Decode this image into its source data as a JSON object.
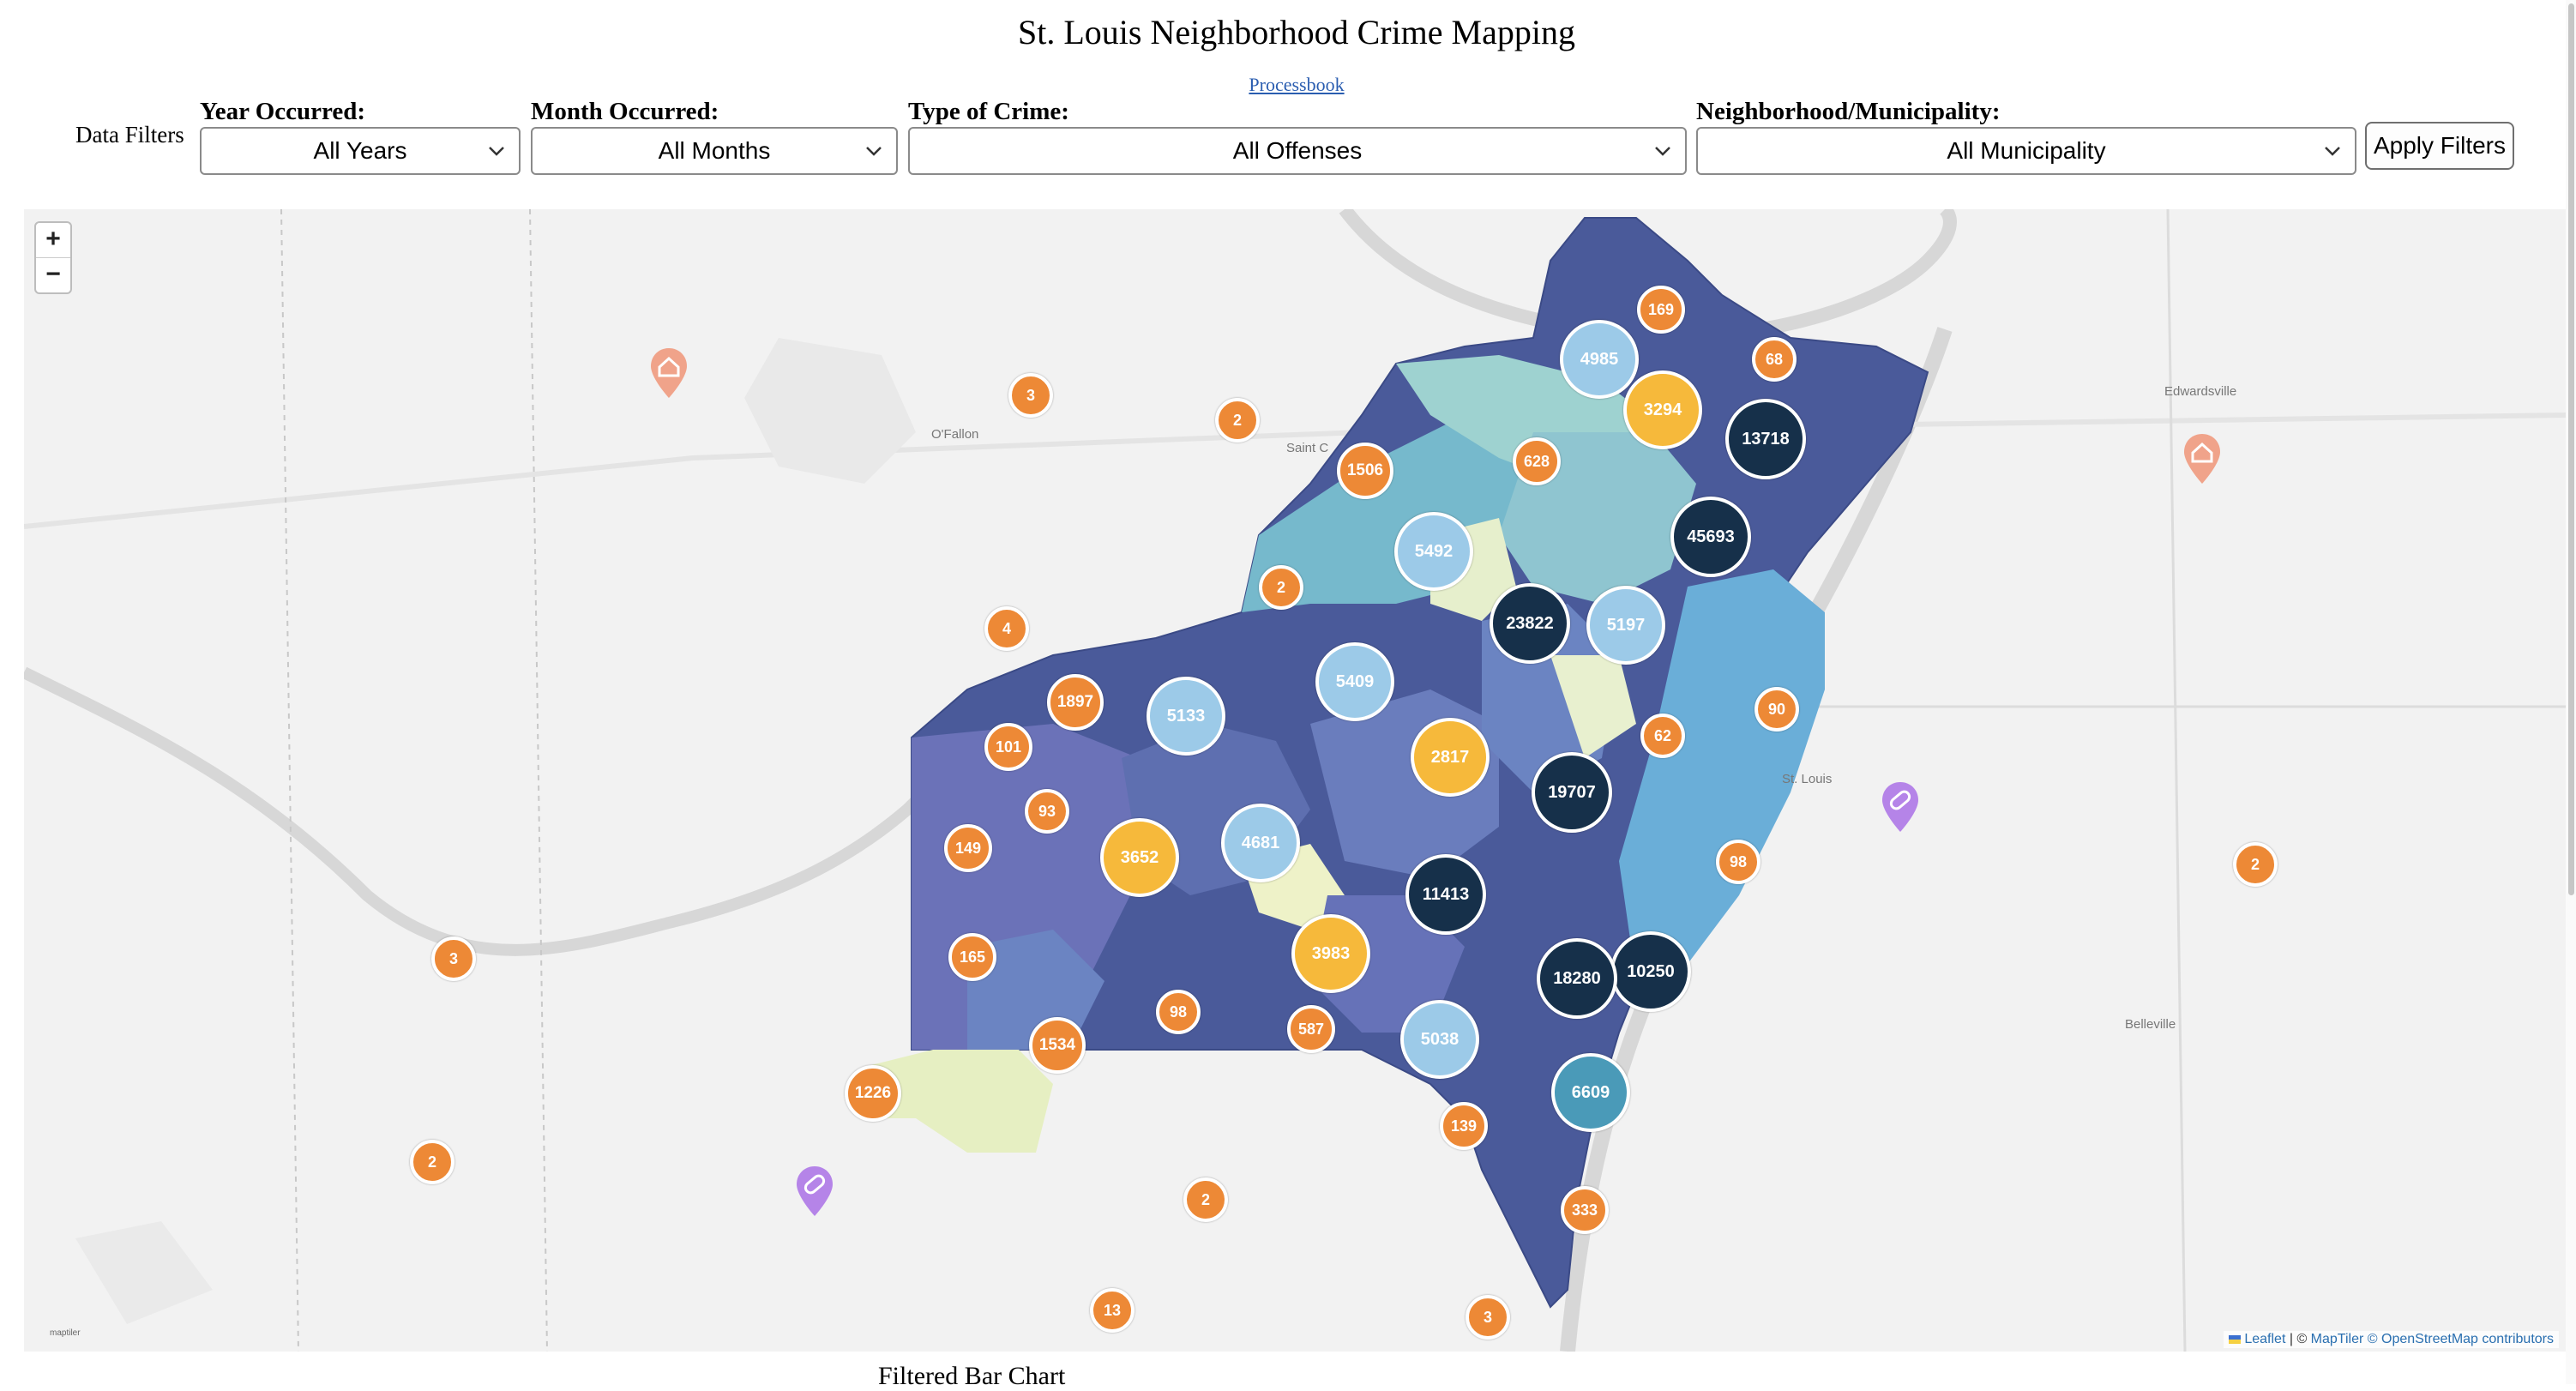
{
  "page": {
    "title": "St. Louis Neighborhood Crime Mapping",
    "link": "Processbook"
  },
  "filters": {
    "section_label": "Data Filters",
    "year": {
      "label": "Year Occurred:",
      "selected": "All Years"
    },
    "month": {
      "label": "Month Occurred:",
      "selected": "All Months"
    },
    "crime_type": {
      "label": "Type of Crime:",
      "selected": "All Offenses"
    },
    "neighborhood": {
      "label": "Neighborhood/Municipality:",
      "selected": "All Municipality"
    },
    "apply_label": "Apply Filters"
  },
  "map": {
    "zoom_in": "+",
    "zoom_out": "−",
    "towns": [
      "O'Fallon",
      "Saint C",
      "Edwardsville",
      "St. Louis",
      "Belleville"
    ],
    "attribution": {
      "leaflet": "Leaflet",
      "sep": " | © ",
      "maptiler": "MapTiler",
      "osm": "© OpenStreetMap contributors"
    },
    "logo": "maptiler",
    "colors": {
      "orange": "#ed8936",
      "yellow": "#f6b93b",
      "light_blue": "#9ccae8",
      "teal": "#4a9ab8",
      "navy": "#16304a"
    },
    "clusters": [
      {
        "count": "169",
        "tier": "orange"
      },
      {
        "count": "68",
        "tier": "orange"
      },
      {
        "count": "4985",
        "tier": "light_blue"
      },
      {
        "count": "3294",
        "tier": "yellow"
      },
      {
        "count": "13718",
        "tier": "navy"
      },
      {
        "count": "3",
        "tier": "orange"
      },
      {
        "count": "2",
        "tier": "orange"
      },
      {
        "count": "1506",
        "tier": "orange"
      },
      {
        "count": "628",
        "tier": "orange"
      },
      {
        "count": "45693",
        "tier": "navy"
      },
      {
        "count": "5492",
        "tier": "light_blue"
      },
      {
        "count": "2",
        "tier": "orange"
      },
      {
        "count": "23822",
        "tier": "navy"
      },
      {
        "count": "5197",
        "tier": "light_blue"
      },
      {
        "count": "4",
        "tier": "orange"
      },
      {
        "count": "5409",
        "tier": "light_blue"
      },
      {
        "count": "1897",
        "tier": "orange"
      },
      {
        "count": "5133",
        "tier": "light_blue"
      },
      {
        "count": "101",
        "tier": "orange"
      },
      {
        "count": "90",
        "tier": "orange"
      },
      {
        "count": "62",
        "tier": "orange"
      },
      {
        "count": "2817",
        "tier": "yellow"
      },
      {
        "count": "19707",
        "tier": "navy"
      },
      {
        "count": "93",
        "tier": "orange"
      },
      {
        "count": "149",
        "tier": "orange"
      },
      {
        "count": "3652",
        "tier": "yellow"
      },
      {
        "count": "4681",
        "tier": "light_blue"
      },
      {
        "count": "98",
        "tier": "orange"
      },
      {
        "count": "2",
        "tier": "orange"
      },
      {
        "count": "11413",
        "tier": "navy"
      },
      {
        "count": "3",
        "tier": "orange"
      },
      {
        "count": "165",
        "tier": "orange"
      },
      {
        "count": "3983",
        "tier": "yellow"
      },
      {
        "count": "10250",
        "tier": "navy"
      },
      {
        "count": "18280",
        "tier": "navy"
      },
      {
        "count": "98",
        "tier": "orange"
      },
      {
        "count": "587",
        "tier": "orange"
      },
      {
        "count": "1534",
        "tier": "orange"
      },
      {
        "count": "5038",
        "tier": "light_blue"
      },
      {
        "count": "1226",
        "tier": "orange"
      },
      {
        "count": "6609",
        "tier": "teal"
      },
      {
        "count": "139",
        "tier": "orange"
      },
      {
        "count": "2",
        "tier": "orange"
      },
      {
        "count": "2",
        "tier": "orange"
      },
      {
        "count": "333",
        "tier": "orange"
      },
      {
        "count": "13",
        "tier": "orange"
      },
      {
        "count": "3",
        "tier": "orange"
      }
    ]
  },
  "below_map": {
    "heading": "Filtered Bar Chart"
  }
}
